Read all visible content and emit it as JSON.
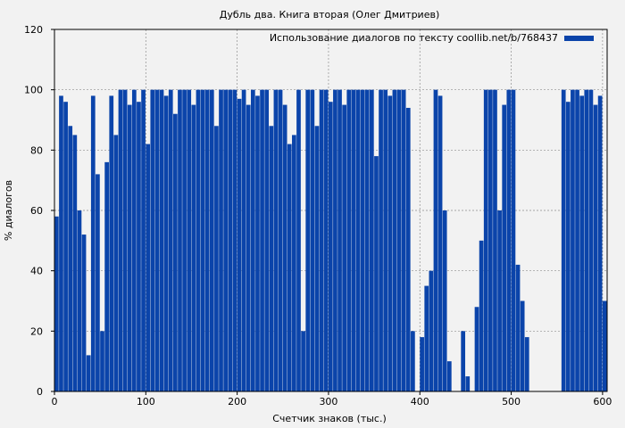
{
  "chart_data": {
    "type": "bar",
    "title": "Дубль два. Книга вторая (Олег Дмитриев)",
    "xlabel": "Счетчик знаков (тыс.)",
    "ylabel": "% диалогов",
    "xlim": [
      0,
      605
    ],
    "ylim": [
      0,
      120
    ],
    "x_ticks": [
      0,
      100,
      200,
      300,
      400,
      500,
      600
    ],
    "y_ticks": [
      0,
      20,
      40,
      60,
      80,
      100,
      120
    ],
    "grid": true,
    "legend_position": "top-right",
    "colors": {
      "series": "#0b44aa",
      "plot_bg": "#f2f2f2",
      "grid": "#8f8f8f"
    },
    "series": [
      {
        "name": "Использование диалогов по тексту coollib.net/b/768437",
        "bin_width": 5,
        "x": [
          0,
          5,
          10,
          15,
          20,
          25,
          30,
          35,
          40,
          45,
          50,
          55,
          60,
          65,
          70,
          75,
          80,
          85,
          90,
          95,
          100,
          105,
          110,
          115,
          120,
          125,
          130,
          135,
          140,
          145,
          150,
          155,
          160,
          165,
          170,
          175,
          180,
          185,
          190,
          195,
          200,
          205,
          210,
          215,
          220,
          225,
          230,
          235,
          240,
          245,
          250,
          255,
          260,
          265,
          270,
          275,
          280,
          285,
          290,
          295,
          300,
          305,
          310,
          315,
          320,
          325,
          330,
          335,
          340,
          345,
          350,
          355,
          360,
          365,
          370,
          375,
          380,
          385,
          390,
          395,
          400,
          405,
          410,
          415,
          420,
          425,
          430,
          435,
          440,
          445,
          450,
          455,
          460,
          465,
          470,
          475,
          480,
          485,
          490,
          495,
          500,
          505,
          510,
          515,
          520,
          525,
          530,
          535,
          540,
          545,
          550,
          555,
          560,
          565,
          570,
          575,
          580,
          585,
          590,
          595,
          600
        ],
        "values": [
          58,
          98,
          96,
          88,
          85,
          60,
          52,
          12,
          98,
          72,
          20,
          76,
          98,
          85,
          100,
          100,
          95,
          100,
          96,
          100,
          82,
          100,
          100,
          100,
          98,
          100,
          92,
          100,
          100,
          100,
          95,
          100,
          100,
          100,
          100,
          88,
          100,
          100,
          100,
          100,
          97,
          100,
          95,
          100,
          98,
          100,
          100,
          88,
          100,
          100,
          95,
          82,
          85,
          100,
          20,
          100,
          100,
          88,
          100,
          100,
          96,
          100,
          100,
          95,
          100,
          100,
          100,
          100,
          100,
          100,
          78,
          100,
          100,
          98,
          100,
          100,
          100,
          94,
          20,
          0,
          18,
          35,
          40,
          100,
          98,
          60,
          10,
          0,
          0,
          20,
          5,
          0,
          28,
          50,
          100,
          100,
          100,
          60,
          95,
          100,
          100,
          42,
          30,
          18,
          0,
          0,
          0,
          0,
          0,
          0,
          0,
          100,
          96,
          100,
          100,
          98,
          100,
          100,
          95,
          98,
          30
        ]
      }
    ]
  }
}
